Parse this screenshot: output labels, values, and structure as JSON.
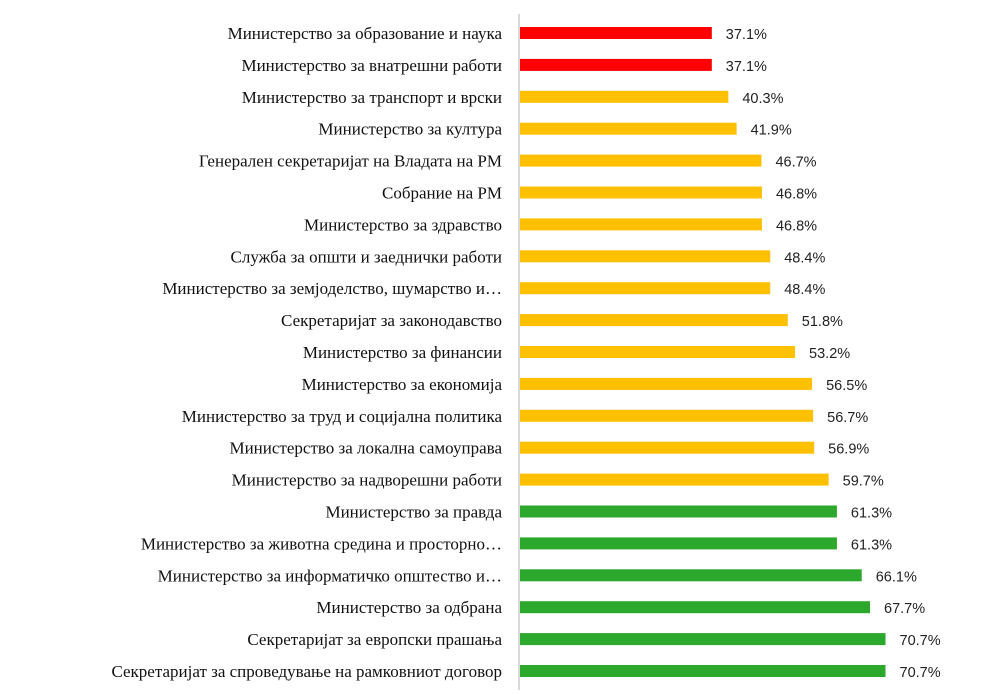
{
  "chart_data": {
    "type": "bar",
    "orientation": "horizontal",
    "title": "",
    "xlabel": "",
    "ylabel": "",
    "xlim": [
      0,
      100
    ],
    "grid": false,
    "value_suffix": "%",
    "categories": [
      "Министерство за образование и наука",
      "Министерство за внатрешни работи",
      "Министерство за транспорт и врски",
      "Министерство за култура",
      "Генерален секретаријат на Владата на РМ",
      "Собрание на РМ",
      "Министерство за здравство",
      "Служба за општи и заеднички работи",
      "Министерство за земјоделство, шумарство и…",
      "Секретаријат за законодавство",
      "Министерство за финансии",
      "Министерство за економија",
      "Министерство за труд и социјална политика",
      "Министерство за локална самоуправа",
      "Министерство за надворешни работи",
      "Министерство за правда",
      "Министерство за животна средина и просторно…",
      "Министерство за информатичко општество и…",
      "Министерство за одбрана",
      "Секретаријат за европски прашања",
      "Секретаријат за спроведување на рамковниот договор"
    ],
    "values": [
      37.1,
      37.1,
      40.3,
      41.9,
      46.7,
      46.8,
      46.8,
      48.4,
      48.4,
      51.8,
      53.2,
      56.5,
      56.7,
      56.9,
      59.7,
      61.3,
      61.3,
      66.1,
      67.7,
      70.7,
      70.7
    ],
    "value_labels": [
      "37.1%",
      "37.1%",
      "40.3%",
      "41.9%",
      "46.7%",
      "46.8%",
      "46.8%",
      "48.4%",
      "48.4%",
      "51.8%",
      "53.2%",
      "56.5%",
      "56.7%",
      "56.9%",
      "59.7%",
      "61.3%",
      "61.3%",
      "66.1%",
      "67.7%",
      "70.7%",
      "70.7%"
    ],
    "bar_colors": [
      "#ff0000",
      "#ff0000",
      "#ffc000",
      "#ffc000",
      "#ffc000",
      "#ffc000",
      "#ffc000",
      "#ffc000",
      "#ffc000",
      "#ffc000",
      "#ffc000",
      "#ffc000",
      "#ffc000",
      "#ffc000",
      "#ffc000",
      "#2ca82c",
      "#2ca82c",
      "#2ca82c",
      "#2ca82c",
      "#2ca82c",
      "#2ca82c"
    ],
    "axis_color": "#d9d9d9"
  }
}
